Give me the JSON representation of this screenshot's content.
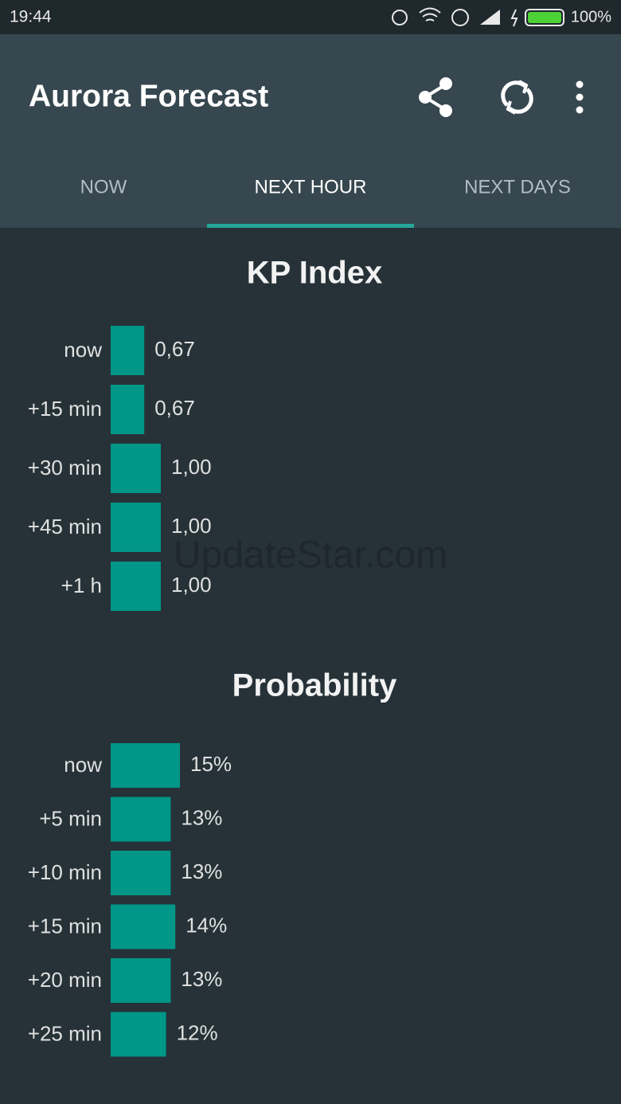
{
  "status_bar": {
    "time": "19:44",
    "battery": "100%"
  },
  "app_bar": {
    "title": "Aurora Forecast"
  },
  "tabs": [
    "NOW",
    "NEXT HOUR",
    "NEXT DAYS"
  ],
  "watermark": "UpdateStar.com",
  "chart_data": [
    {
      "type": "bar",
      "title": "KP Index",
      "categories": [
        "now",
        "+15 min",
        "+30 min",
        "+45 min",
        "+1 h"
      ],
      "values": [
        0.67,
        0.67,
        1.0,
        1.0,
        1.0
      ],
      "value_labels": [
        "0,67",
        "0,67",
        "1,00",
        "1,00",
        "1,00"
      ],
      "color": "#009688"
    },
    {
      "type": "bar",
      "title": "Probability",
      "categories": [
        "now",
        "+5 min",
        "+10 min",
        "+15 min",
        "+20 min",
        "+25 min"
      ],
      "values": [
        15,
        13,
        13,
        14,
        13,
        12
      ],
      "value_labels": [
        "15%",
        "13%",
        "13%",
        "14%",
        "13%",
        "12%"
      ],
      "color": "#009688"
    }
  ]
}
